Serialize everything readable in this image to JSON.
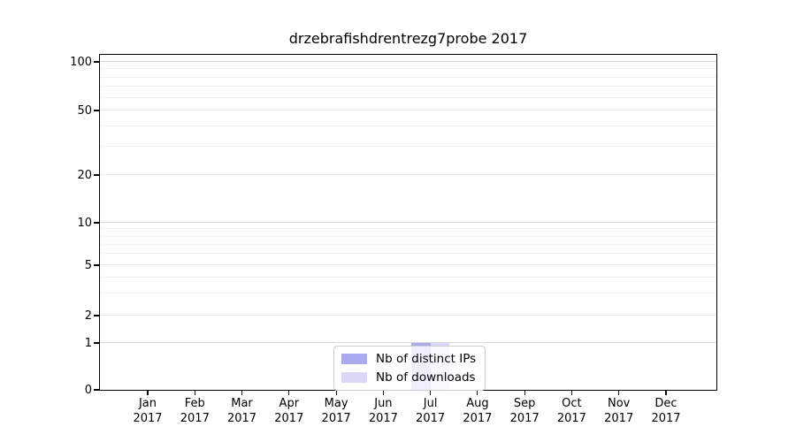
{
  "chart_data": {
    "type": "bar",
    "title": "drzebrafishdrentrezg7probe 2017",
    "xlabel": "",
    "ylabel": "",
    "categories": [
      "Jan",
      "Feb",
      "Mar",
      "Apr",
      "May",
      "Jun",
      "Jul",
      "Aug",
      "Sep",
      "Oct",
      "Nov",
      "Dec"
    ],
    "year_label": "2017",
    "series": [
      {
        "name": "Nb of distinct IPs",
        "color": "#aaaaee",
        "values": [
          0,
          0,
          0,
          0,
          0,
          0,
          1,
          0,
          0,
          0,
          0,
          0
        ]
      },
      {
        "name": "Nb of downloads",
        "color": "#d9d9f7",
        "values": [
          0,
          0,
          0,
          0,
          0,
          0,
          1,
          0,
          0,
          0,
          0,
          0
        ]
      }
    ],
    "yticks": [
      0,
      1,
      2,
      5,
      10,
      20,
      50,
      100
    ],
    "y_minor_gridlines": [
      3,
      4,
      6,
      7,
      8,
      9,
      30,
      40,
      60,
      70,
      80,
      90
    ],
    "ylim": [
      0,
      110
    ],
    "y_scale": "symlog",
    "grid": true,
    "legend_position": "lower center",
    "border_color": "#000000",
    "background_color": "#ffffff"
  }
}
